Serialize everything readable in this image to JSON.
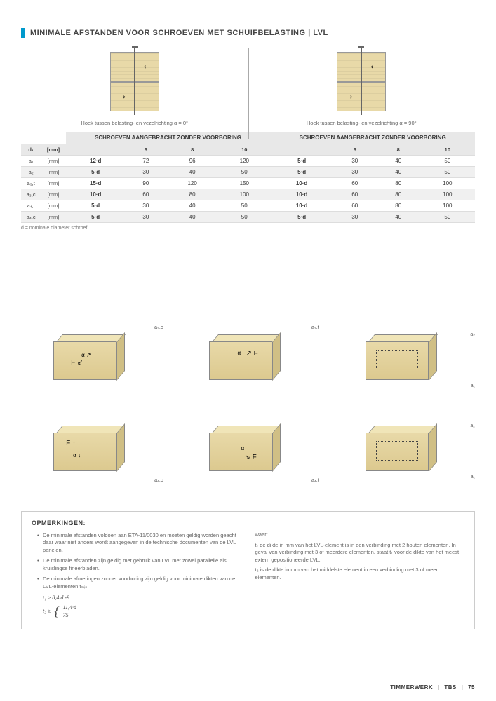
{
  "title": "MINIMALE AFSTANDEN VOOR SCHROEVEN MET SCHUIFBELASTING | LVL",
  "diagram_captions": {
    "left": "Hoek tussen belasting- en vezelrichting α = 0°",
    "right": "Hoek tussen belasting- en vezelrichting α = 90°"
  },
  "table": {
    "section_head_left": "SCHROEVEN AANGEBRACHT ZONDER VOORBORING",
    "section_head_right": "SCHROEVEN AANGEBRACHT ZONDER VOORBORING",
    "col_head": [
      "d₁",
      "[mm]",
      "",
      "6",
      "8",
      "10",
      "",
      "6",
      "8",
      "10"
    ],
    "rows": [
      {
        "label": "a₁",
        "unit": "[mm]",
        "l_formula": "12·d",
        "l6": "72",
        "l8": "96",
        "l10": "120",
        "r_formula": "5·d",
        "r6": "30",
        "r8": "40",
        "r10": "50"
      },
      {
        "label": "a₂",
        "unit": "[mm]",
        "l_formula": "5·d",
        "l6": "30",
        "l8": "40",
        "l10": "50",
        "r_formula": "5·d",
        "r6": "30",
        "r8": "40",
        "r10": "50"
      },
      {
        "label": "a₃,t",
        "unit": "[mm]",
        "l_formula": "15·d",
        "l6": "90",
        "l8": "120",
        "l10": "150",
        "r_formula": "10·d",
        "r6": "60",
        "r8": "80",
        "r10": "100"
      },
      {
        "label": "a₃,c",
        "unit": "[mm]",
        "l_formula": "10·d",
        "l6": "60",
        "l8": "80",
        "l10": "100",
        "r_formula": "10·d",
        "r6": "60",
        "r8": "80",
        "r10": "100"
      },
      {
        "label": "a₄,t",
        "unit": "[mm]",
        "l_formula": "5·d",
        "l6": "30",
        "l8": "40",
        "l10": "50",
        "r_formula": "10·d",
        "r6": "60",
        "r8": "80",
        "r10": "100"
      },
      {
        "label": "a₄,c",
        "unit": "[mm]",
        "l_formula": "5·d",
        "l6": "30",
        "l8": "40",
        "l10": "50",
        "r_formula": "5·d",
        "r6": "30",
        "r8": "40",
        "r10": "50"
      }
    ],
    "footnote": "d = nominale diameter schroef"
  },
  "iso_labels": {
    "tl": "a₃,c",
    "tm": "a₃,t",
    "tr_a2": "a₂",
    "tr_a1": "a₁",
    "bl": "a₄,c",
    "bm": "a₄,t",
    "br_a2": "a₂",
    "br_a1": "a₁"
  },
  "remarks": {
    "heading": "OPMERKINGEN:",
    "bullets": [
      "De minimale afstanden voldoen aan ETA-11/0030 en moeten geldig worden geacht daar waar niet anders wordt aangegeven in de technische documenten van de LVL panelen.",
      "De minimale afstanden zijn geldig met gebruik van LVL met zowel parallelle als kruislingse fineerbladen.",
      "De minimale afmetingen zonder voorboring zijn geldig voor minimale dikten van de LVL-elementen tₘᵢₙ:"
    ],
    "formula1": "t₁ ≥ 8,4·d -9",
    "formula2_top": "11,4·d",
    "formula2_bot": "75",
    "formula2_lhs": "t₂ ≥",
    "right_col": {
      "waar": "waar:",
      "t1": "t₁ de dikte in mm van het LVL-element is in een verbinding met 2 houten elementen. In geval van verbinding met 3 of meerdere elementen, staat t₁ voor de dikte van het meest extern gepositioneerde LVL;",
      "t2": "t₂ is de dikte in mm van het middelste element in een verbinding met 3 of meer elementen."
    }
  },
  "footer": {
    "section": "TIMMERWERK",
    "sub": "TBS",
    "page": "75"
  },
  "colors": {
    "wood": "#e8d9a8",
    "wood_dark": "#d0bf85",
    "accent": "#0099cc",
    "grey_bg": "#e8e8e8"
  }
}
